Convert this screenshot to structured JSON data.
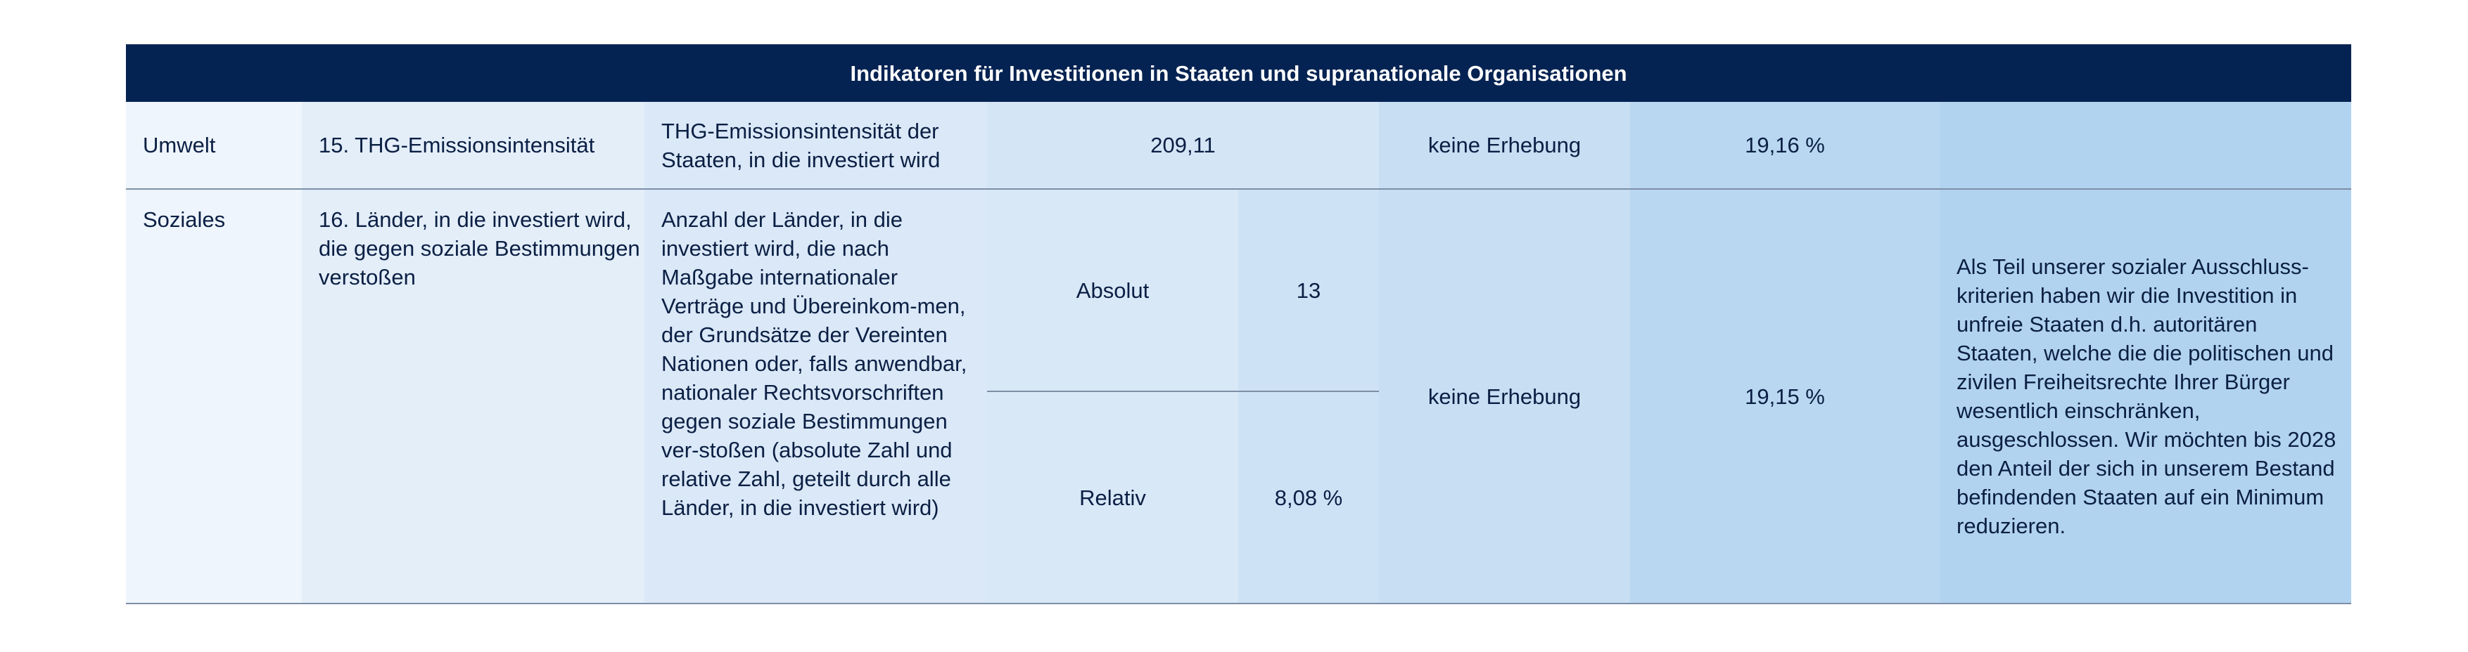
{
  "table": {
    "title": "Indikatoren für Investitionen in Staaten und supranationale Organisationen",
    "rows": [
      {
        "category": "Umwelt",
        "indicator": "15. THG-Emissionsintensität",
        "metric": "THG-Emissionsintensität der Staaten, in die investiert wird",
        "value": "209,11",
        "previous": "keine Erhebung",
        "coverage": "19,16 %",
        "measures": ""
      },
      {
        "category": "Soziales",
        "indicator": "16. Länder, in die investiert wird, die gegen soziale Bestimmungen verstoßen",
        "metric": "Anzahl der Länder, in die investiert wird, die nach Maßgabe internationaler Verträge und Übereinkom-men, der Grundsätze der Vereinten Nationen oder, falls anwendbar, nationaler Rechtsvorschriften gegen soziale Bestimmungen ver-stoßen (absolute Zahl und relative Zahl, geteilt durch alle Länder, in die investiert wird)",
        "sub": [
          {
            "label": "Absolut",
            "value": "13"
          },
          {
            "label": "Relativ",
            "value": "8,08 %"
          }
        ],
        "previous": "keine Erhebung",
        "coverage": "19,15 %",
        "measures": "Als Teil unserer sozialer Ausschluss-kriterien haben wir die Investition in unfreie Staaten d.h. autoritären Staaten, welche die die politischen und zivilen Freiheitsrechte Ihrer Bürger wesentlich einschränken, ausgeschlossen. Wir möchten bis 2028 den Anteil der sich in unserem Bestand befindenden Staaten auf ein Minimum reduzieren."
      }
    ]
  },
  "colors": {
    "header_bg": "#052352",
    "header_text": "#ffffff",
    "text": "#0b1f44",
    "divider": "#7d8ea6"
  }
}
